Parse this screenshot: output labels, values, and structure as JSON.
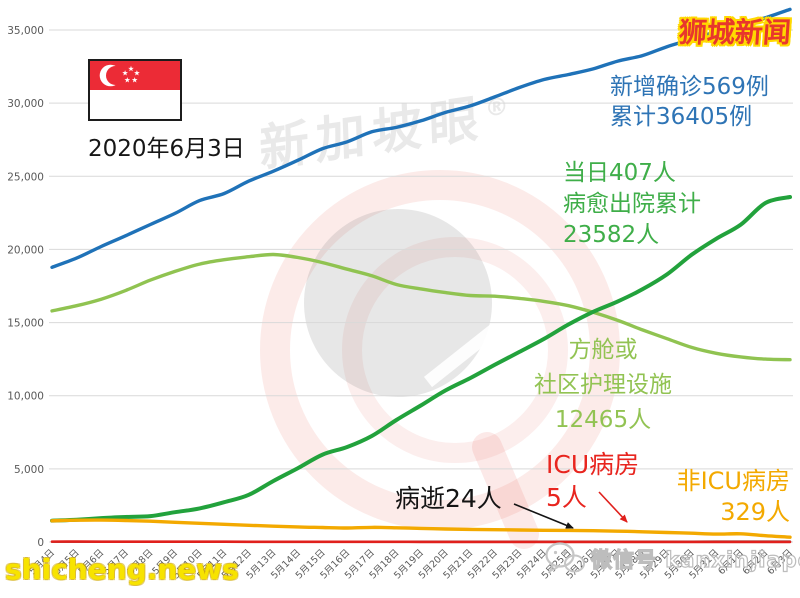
{
  "header": {
    "brand": "狮城新闻",
    "brand_color": "#e8372c",
    "date_label": "2020年6月3日",
    "flag": "singapore-flag"
  },
  "watermarks": {
    "diagonal": "新加坡眼",
    "reg": "®",
    "site": "shicheng.news",
    "site_color": "#f7e300",
    "wechat": "微信号 kanxinjiapo"
  },
  "annotations": {
    "confirmed": {
      "lines": [
        "新增确诊569例",
        "累计36405例"
      ],
      "color": "#2e74b5"
    },
    "recovered": {
      "lines": [
        "当日407人",
        "病愈出院累计",
        "23582人"
      ],
      "color": "#3fae49"
    },
    "community": {
      "lines": [
        "方舱或",
        "社区护理设施",
        "12465人"
      ],
      "color": "#92c353"
    },
    "deaths": {
      "lines": [
        "病逝24人"
      ],
      "color": "#141414"
    },
    "icu": {
      "lines": [
        "ICU病房",
        "5人"
      ],
      "color": "#e8251f"
    },
    "non_icu": {
      "lines": [
        "非ICU病房",
        "329人"
      ],
      "color": "#f3a900"
    }
  },
  "chart_data": {
    "type": "line",
    "grid": true,
    "ylim": [
      0,
      35000
    ],
    "ytick_step": 5000,
    "ytick_labels": [
      "0",
      "5,000",
      "10,000",
      "15,000",
      "20,000",
      "25,000",
      "30,000",
      "35,000"
    ],
    "x_labels": [
      "5月4日",
      "5月5日",
      "5月6日",
      "5月7日",
      "5月8日",
      "5月9日",
      "5月10日",
      "5月11日",
      "5月12日",
      "5月13日",
      "5月14日",
      "5月15日",
      "5月16日",
      "5月17日",
      "5月18日",
      "5月19日",
      "5月20日",
      "5月21日",
      "5月22日",
      "5月23日",
      "5月24日",
      "5月25日",
      "5月26日",
      "5月27日",
      "5月28日",
      "5月29日",
      "5月30日",
      "5月31日",
      "6月1日",
      "6月2日",
      "6月3日"
    ],
    "series": [
      {
        "key": "community",
        "name": "方舱或社区护理设施",
        "color": "#90c351",
        "values": [
          15800,
          16150,
          16600,
          17200,
          17900,
          18500,
          19000,
          19300,
          19500,
          19650,
          19450,
          19100,
          18650,
          18200,
          17600,
          17300,
          17050,
          16850,
          16800,
          16650,
          16450,
          16150,
          15700,
          15150,
          14500,
          13900,
          13300,
          12900,
          12650,
          12500,
          12465
        ]
      },
      {
        "key": "recovered",
        "name": "病愈出院累计",
        "color": "#22a23c",
        "values": [
          1457,
          1519,
          1634,
          1712,
          1768,
          2040,
          2296,
          2721,
          3225,
          4172,
          5051,
          5973,
          6493,
          7248,
          8342,
          9340,
          10365,
          11207,
          12117,
          12995,
          13882,
          14876,
          15738,
          16444,
          17276,
          18294,
          19631,
          20727,
          21699,
          23175,
          23582
        ]
      },
      {
        "key": "non_icu",
        "name": "非ICU病房",
        "color": "#f3a900",
        "values": [
          1450,
          1490,
          1500,
          1470,
          1420,
          1350,
          1280,
          1210,
          1140,
          1080,
          1030,
          990,
          960,
          1000,
          970,
          930,
          890,
          860,
          840,
          820,
          800,
          790,
          770,
          740,
          700,
          650,
          600,
          540,
          560,
          430,
          329
        ]
      },
      {
        "key": "deaths",
        "name": "病逝",
        "color": "#5a4a42",
        "values": [
          18,
          18,
          18,
          18,
          19,
          20,
          20,
          20,
          20,
          21,
          21,
          21,
          21,
          22,
          22,
          22,
          22,
          22,
          22,
          23,
          23,
          23,
          23,
          23,
          23,
          23,
          23,
          24,
          24,
          24,
          24
        ]
      },
      {
        "key": "icu",
        "name": "ICU病房",
        "color": "#e0201c",
        "values": [
          25,
          24,
          23,
          22,
          21,
          20,
          19,
          18,
          17,
          16,
          15,
          14,
          13,
          12,
          11,
          10,
          10,
          9,
          9,
          8,
          8,
          8,
          7,
          7,
          7,
          6,
          6,
          6,
          5,
          5,
          5
        ]
      },
      {
        "key": "confirmed",
        "name": "累计确诊",
        "color": "#1f72b8",
        "values": [
          18778,
          19410,
          20198,
          20939,
          21707,
          22460,
          23336,
          23822,
          24671,
          25346,
          26098,
          26891,
          27356,
          28038,
          28343,
          28794,
          29364,
          29812,
          30426,
          31068,
          31616,
          31960,
          32343,
          32876,
          33249,
          33860,
          34366,
          34884,
          35292,
          35836,
          36405
        ]
      }
    ]
  }
}
